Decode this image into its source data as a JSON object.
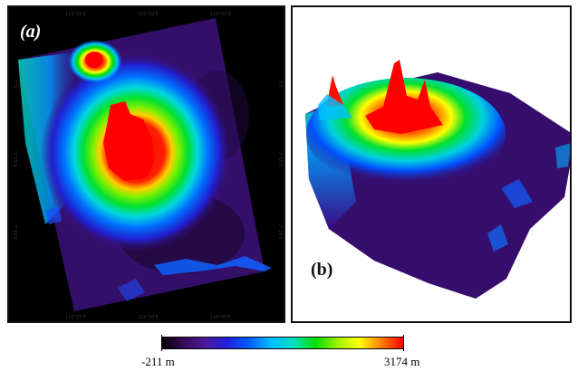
{
  "panel_a": {
    "label": "(a)",
    "top_coords": [
      "110°15'E",
      "110°30'E",
      "110°45'E"
    ],
    "bottom_coords": [
      "110°15'E",
      "110°30'E",
      "110°45'E"
    ],
    "left_coords": [
      "7°S",
      "7°15'S",
      "7°30'S"
    ],
    "right_coords": [
      "7°S",
      "7°15'S",
      "7°30'S"
    ]
  },
  "panel_b": {
    "label": "(b)"
  },
  "legend": {
    "min_label": "-211 m",
    "max_label": "3174 m",
    "min_value": -211,
    "max_value": 3174,
    "unit": "m",
    "colors": [
      "#000000",
      "#3a0a5a",
      "#4a1aa0",
      "#2020e0",
      "#0060ff",
      "#00c0ff",
      "#00e0c0",
      "#00e000",
      "#a0f000",
      "#ffff00",
      "#ff8000",
      "#ff0000"
    ]
  },
  "colors": {
    "background": "#000000",
    "panel_border": "#111111",
    "peak": "#ff0000"
  }
}
